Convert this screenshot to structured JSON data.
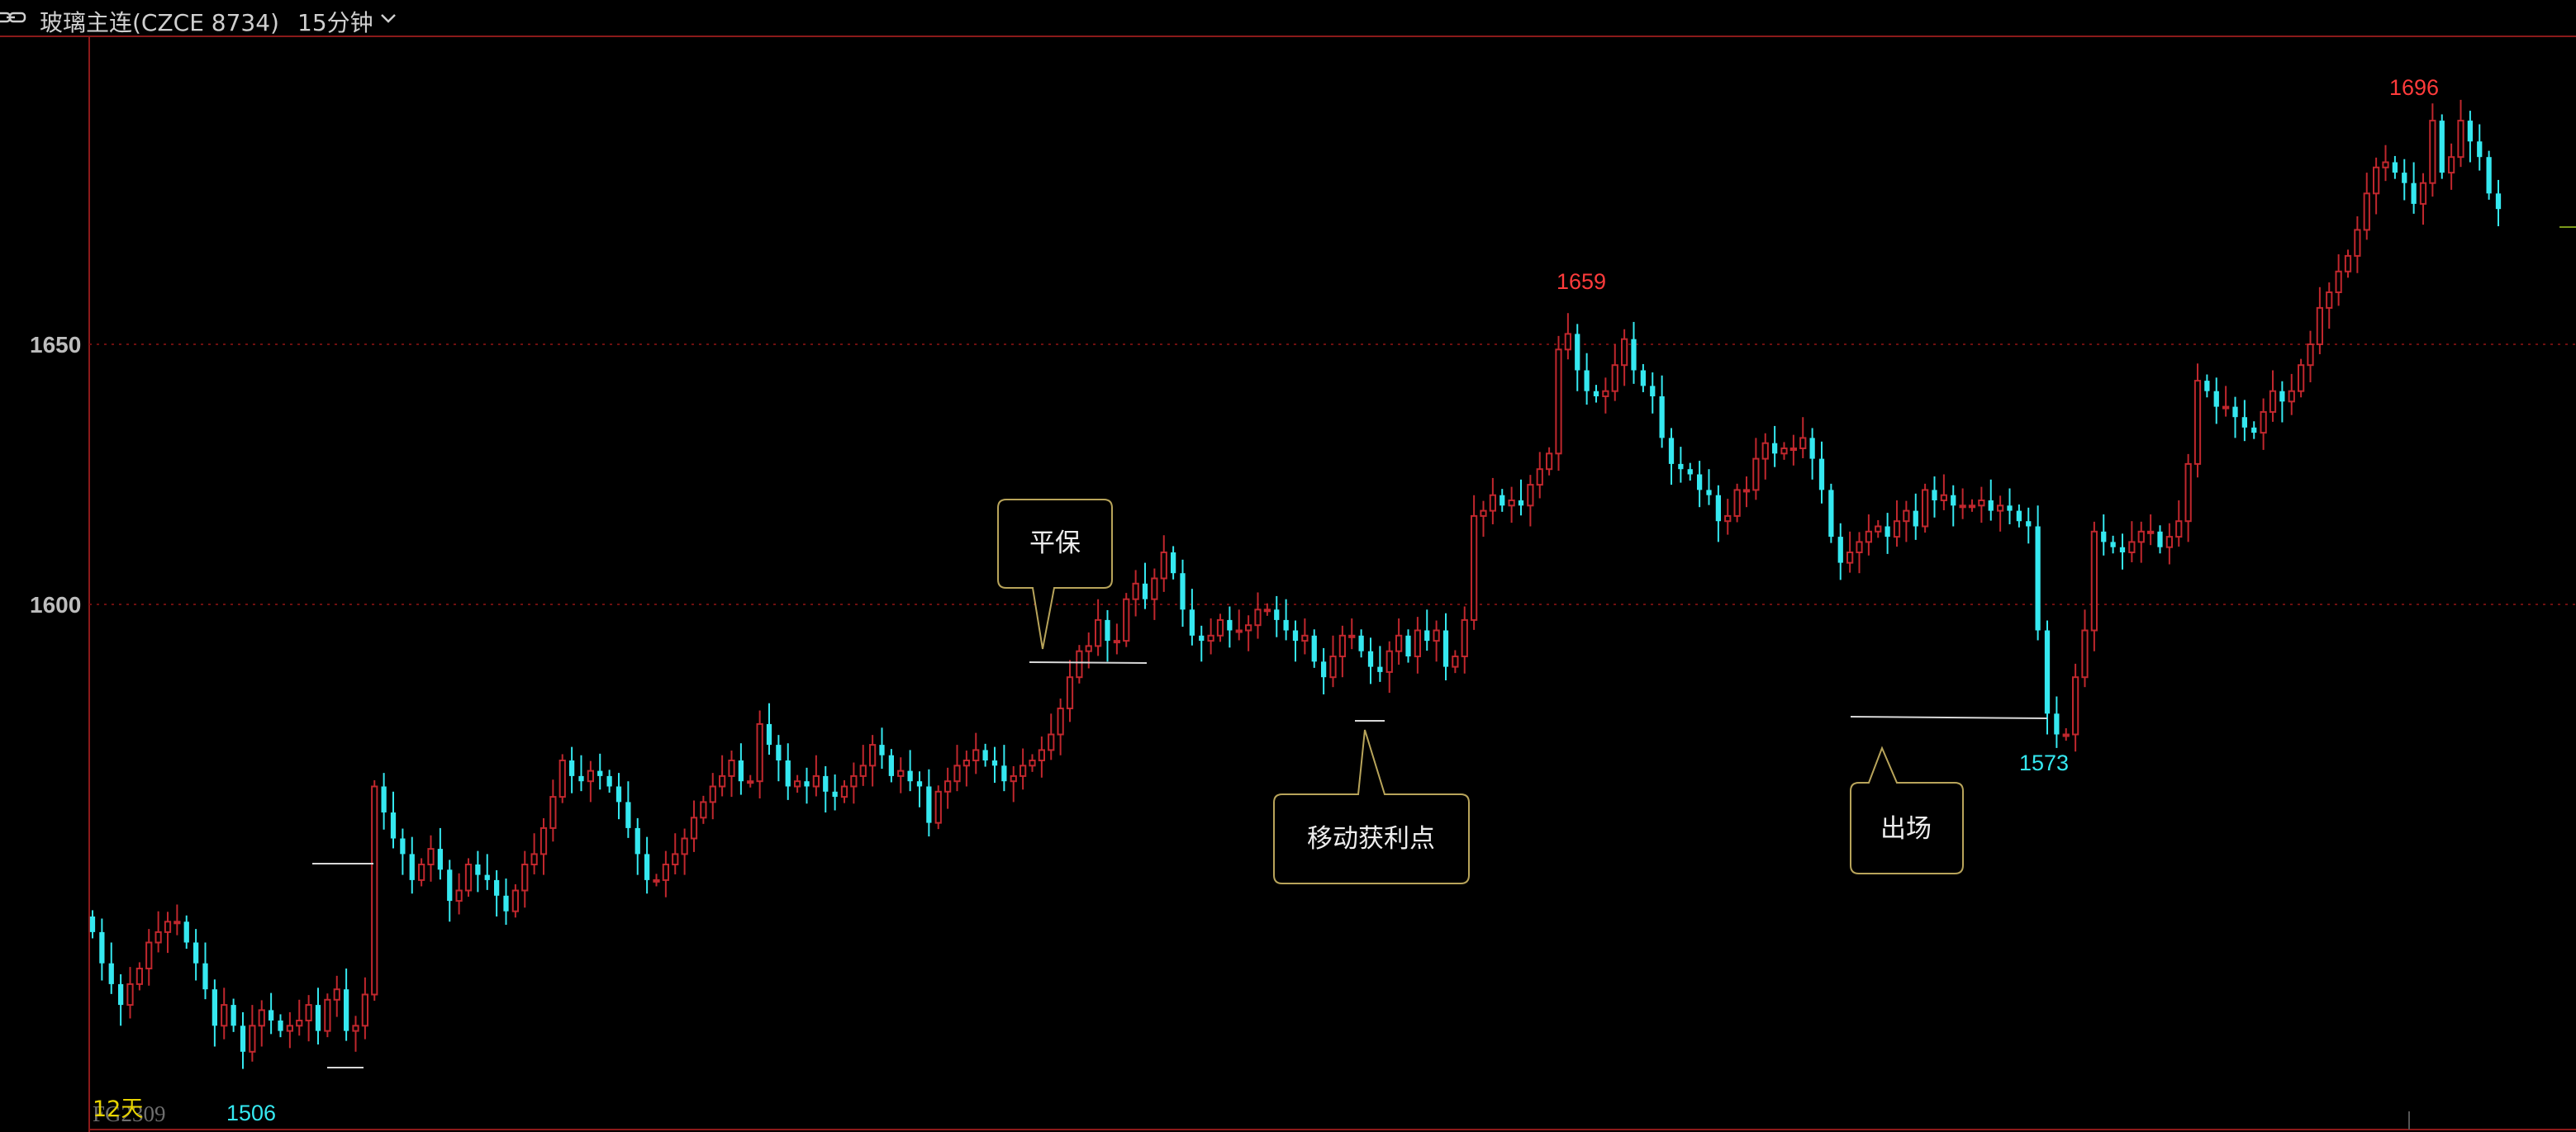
{
  "header": {
    "title": "玻璃主连(CZCE 8734)",
    "period": "15分钟",
    "icons": [
      "chain-link-icon",
      "chevron-down-icon"
    ]
  },
  "colors": {
    "background": "#000000",
    "up": "#c0272d",
    "down": "#35e8f0",
    "grid": "#6e0f0f",
    "axis": "#8b1a1a"
  },
  "footer": {
    "days": "12天",
    "contract": "FG2309"
  },
  "annotations": {
    "breakeven": "平保",
    "trailing_profit": "移动获利点",
    "exit": "出场"
  },
  "chart_data": {
    "type": "candlestick",
    "y_tick_labels": [
      "1650",
      "1600"
    ],
    "y_range": [
      1509,
      1715
    ],
    "grid": "dotted horizontal",
    "extremes": [
      {
        "label": "1506",
        "value": 1506,
        "kind": "low"
      },
      {
        "label": "1659",
        "value": 1659,
        "kind": "high"
      },
      {
        "label": "1573",
        "value": 1573,
        "kind": "low"
      },
      {
        "label": "1696",
        "value": 1696,
        "kind": "high"
      }
    ],
    "closes": [
      1537,
      1531,
      1527,
      1523,
      1527,
      1530,
      1535,
      1537,
      1539,
      1539,
      1535,
      1531,
      1526,
      1519,
      1523,
      1519,
      1514,
      1519,
      1522,
      1520,
      1518,
      1519,
      1520,
      1523,
      1518,
      1524,
      1526,
      1518,
      1519,
      1525,
      1565,
      1560,
      1555,
      1552,
      1547,
      1550,
      1553,
      1549,
      1543,
      1545,
      1550,
      1548,
      1547,
      1544,
      1541,
      1545,
      1550,
      1552,
      1557,
      1563,
      1570,
      1567,
      1566,
      1568,
      1567,
      1565,
      1562,
      1557,
      1552,
      1547,
      1547,
      1550,
      1552,
      1555,
      1559,
      1562,
      1565,
      1567,
      1570,
      1566,
      1566,
      1577,
      1573,
      1570,
      1565,
      1566,
      1565,
      1567,
      1564,
      1563,
      1565,
      1567,
      1569,
      1573,
      1571,
      1567,
      1568,
      1566,
      1565,
      1558,
      1564,
      1566,
      1569,
      1570,
      1572,
      1570,
      1569,
      1566,
      1567,
      1569,
      1570,
      1572,
      1575,
      1580,
      1586,
      1591,
      1592,
      1597,
      1593,
      1593,
      1601,
      1604,
      1601,
      1605,
      1610,
      1606,
      1599,
      1594,
      1593,
      1594,
      1597,
      1595,
      1595,
      1596,
      1599,
      1599,
      1597,
      1595,
      1593,
      1594,
      1589,
      1586,
      1590,
      1594,
      1594,
      1591,
      1588,
      1587,
      1591,
      1594,
      1590,
      1595,
      1593,
      1595,
      1588,
      1590,
      1597,
      1617,
      1618,
      1621,
      1619,
      1620,
      1619,
      1623,
      1626,
      1629,
      1649,
      1652,
      1645,
      1641,
      1640,
      1641,
      1646,
      1651,
      1645,
      1642,
      1640,
      1632,
      1627,
      1626,
      1625,
      1622,
      1621,
      1616,
      1617,
      1622,
      1622,
      1628,
      1631,
      1629,
      1630,
      1630,
      1632,
      1628,
      1622,
      1613,
      1608,
      1610,
      1612,
      1614,
      1615,
      1613,
      1616,
      1618,
      1615,
      1622,
      1620,
      1621,
      1619,
      1619,
      1619,
      1620,
      1618,
      1619,
      1618,
      1616,
      1615,
      1595,
      1579,
      1575,
      1575,
      1586,
      1595,
      1614,
      1612,
      1611,
      1610,
      1612,
      1614,
      1614,
      1611,
      1613,
      1616,
      1627,
      1643,
      1641,
      1638,
      1638,
      1636,
      1634,
      1633,
      1637,
      1641,
      1639,
      1641,
      1646,
      1650,
      1657,
      1660,
      1664,
      1667,
      1672,
      1679,
      1684,
      1685,
      1683,
      1681,
      1677,
      1681,
      1693,
      1683,
      1686,
      1693,
      1689,
      1686,
      1679,
      1676
    ]
  }
}
